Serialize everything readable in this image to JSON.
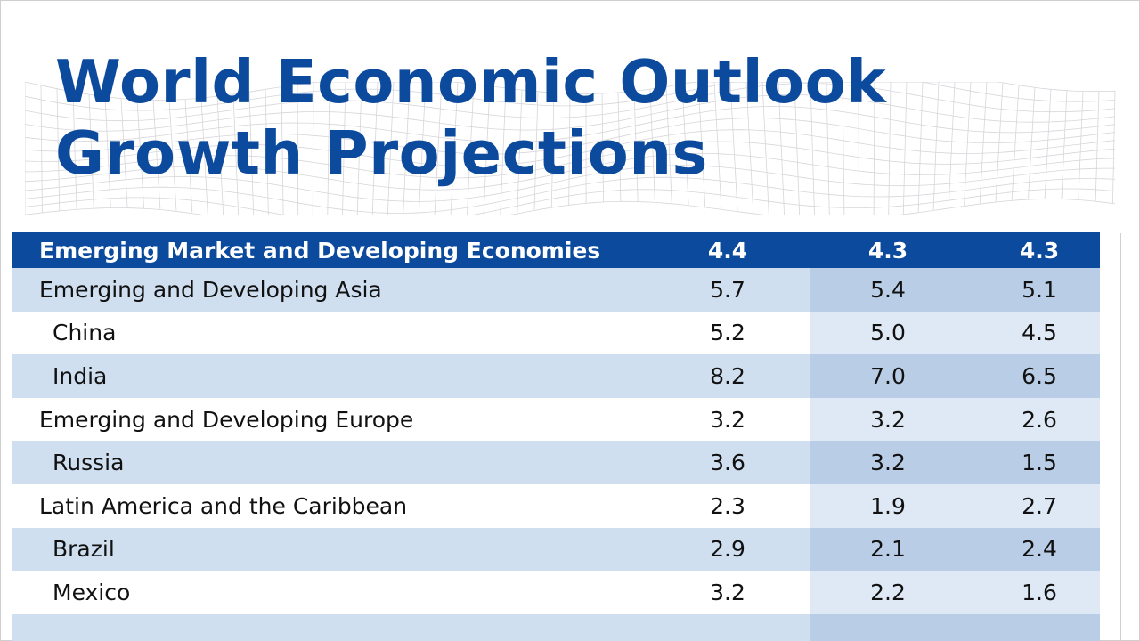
{
  "title": {
    "line1": "World Economic Outlook",
    "line2": "Growth Projections"
  },
  "table": {
    "rows": [
      {
        "label": "Emerging Market and Developing Economies",
        "values": [
          "4.4",
          "4.3",
          "4.3"
        ],
        "style": "header",
        "indent": false
      },
      {
        "label": "Emerging and Developing Asia",
        "values": [
          "5.7",
          "5.4",
          "5.1"
        ],
        "style": "shaded",
        "indent": false
      },
      {
        "label": "China",
        "values": [
          "5.2",
          "5.0",
          "4.5"
        ],
        "style": "light",
        "indent": true
      },
      {
        "label": "India",
        "values": [
          "8.2",
          "7.0",
          "6.5"
        ],
        "style": "shaded",
        "indent": true
      },
      {
        "label": "Emerging and Developing Europe",
        "values": [
          "3.2",
          "3.2",
          "2.6"
        ],
        "style": "light",
        "indent": false
      },
      {
        "label": "Russia",
        "values": [
          "3.6",
          "3.2",
          "1.5"
        ],
        "style": "shaded",
        "indent": true
      },
      {
        "label": "Latin America and the Caribbean",
        "values": [
          "2.3",
          "1.9",
          "2.7"
        ],
        "style": "light",
        "indent": false
      },
      {
        "label": "Brazil",
        "values": [
          "2.9",
          "2.1",
          "2.4"
        ],
        "style": "shaded",
        "indent": true
      },
      {
        "label": "Mexico",
        "values": [
          "3.2",
          "2.2",
          "1.6"
        ],
        "style": "light",
        "indent": true
      }
    ]
  },
  "colors": {
    "title_blue": "#0b4a9c",
    "header_bg": "#0b4a9c",
    "row_shaded": "#cfdff0",
    "col_shaded": "#b9cde6",
    "col_light": "#dfe9f5"
  }
}
